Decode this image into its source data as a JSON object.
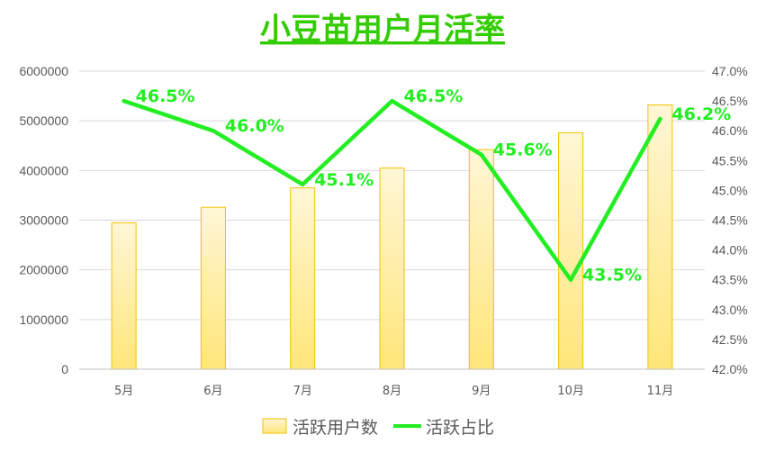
{
  "chart_data": {
    "type": "bar",
    "title": "小豆苗用户月活率",
    "categories": [
      "5月",
      "6月",
      "7月",
      "8月",
      "9月",
      "10月",
      "11月"
    ],
    "series": [
      {
        "name": "活跃用户数",
        "type": "bar",
        "axis": "left",
        "values": [
          2950000,
          3260000,
          3650000,
          4050000,
          4420000,
          4760000,
          5320000
        ]
      },
      {
        "name": "活跃占比",
        "type": "line",
        "axis": "right",
        "values": [
          46.5,
          46.0,
          45.1,
          46.5,
          45.6,
          43.5,
          46.2
        ],
        "labels": [
          "46.5%",
          "46.0%",
          "45.1%",
          "46.5%",
          "45.6%",
          "43.5%",
          "46.2%"
        ]
      }
    ],
    "y_left": {
      "min": 0,
      "max": 6000000,
      "ticks": [
        "0",
        "1000000",
        "2000000",
        "3000000",
        "4000000",
        "5000000",
        "6000000"
      ]
    },
    "y_right": {
      "min": 42.0,
      "max": 47.0,
      "ticks": [
        "42.0%",
        "42.5%",
        "43.0%",
        "43.5%",
        "44.0%",
        "44.5%",
        "45.0%",
        "45.5%",
        "46.0%",
        "46.5%",
        "47.0%"
      ]
    },
    "grid": true,
    "legend_position": "bottom",
    "colors": {
      "title": "#33cc00",
      "line": "#22ee22",
      "line_label": "#22ee22",
      "bar_top": "#fff6d6",
      "bar_bottom": "#ffe679",
      "bar_border": "#f2c200",
      "grid": "#d9d9d9",
      "text": "#595959"
    }
  }
}
